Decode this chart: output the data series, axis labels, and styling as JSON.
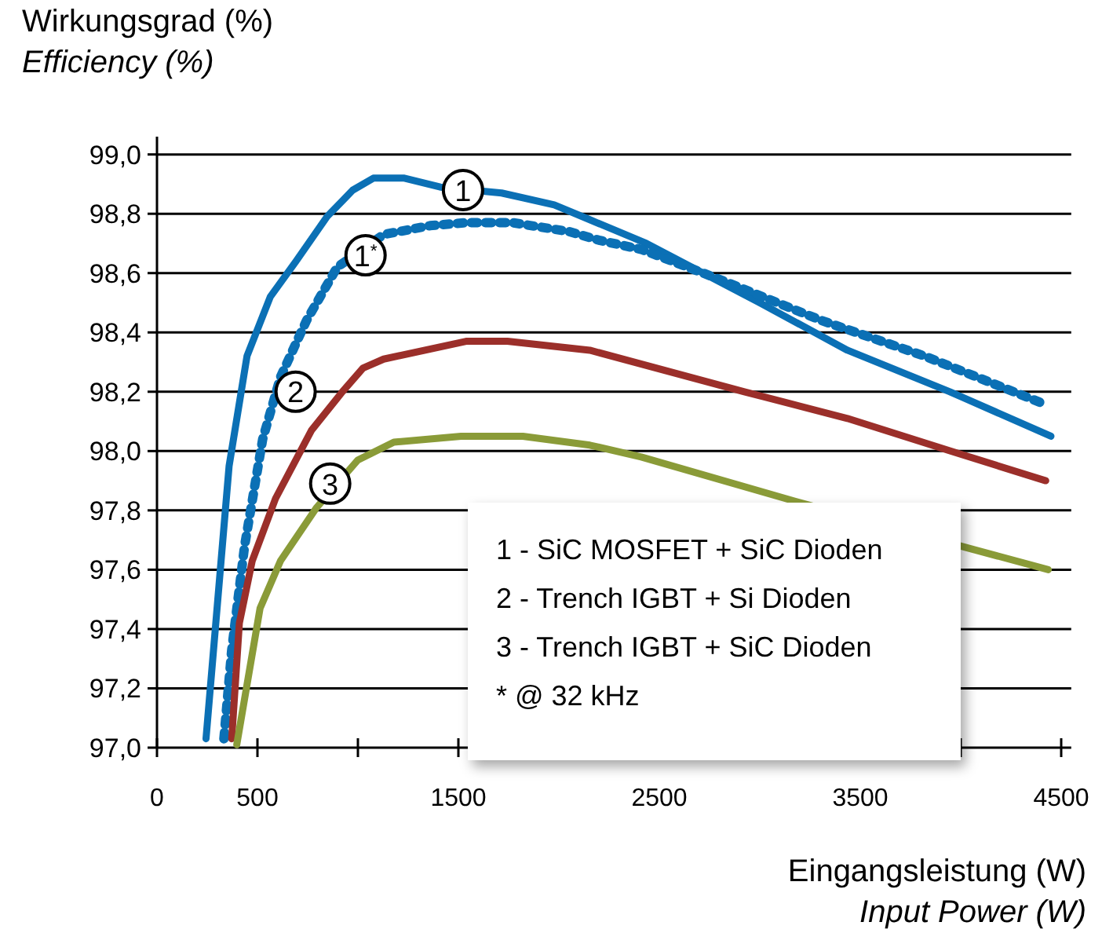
{
  "chart_data": {
    "type": "line",
    "ylabel": "Wirkungsgrad (%)\nEfficiency (%)",
    "xlabel": "Eingangsleistung (W)\nInput Power (W)",
    "xlim": [
      0,
      4550
    ],
    "xticks": [
      0,
      500,
      {
        "value": 1000,
        "label": null
      },
      1500,
      {
        "value": 2000,
        "label": null
      },
      2500,
      {
        "value": 3000,
        "label": null
      },
      3500,
      {
        "value": 4000,
        "label": null
      },
      4500
    ],
    "ylim": [
      97,
      99.06
    ],
    "yticks": [
      {
        "value": 97,
        "label": "97,0"
      },
      {
        "value": 97.2,
        "label": "97,2"
      },
      {
        "value": 97.4,
        "label": "97,4"
      },
      {
        "value": 97.6,
        "label": "97,6"
      },
      {
        "value": 97.8,
        "label": "97,8"
      },
      {
        "value": 98,
        "label": "98,0"
      },
      {
        "value": 98.2,
        "label": "98,2"
      },
      {
        "value": 98.4,
        "label": "98,4"
      },
      {
        "value": 98.6,
        "label": "98,6"
      },
      {
        "value": 98.8,
        "label": "98,8"
      },
      {
        "value": 99,
        "label": "99,0"
      }
    ],
    "grid": "y",
    "marker": "none",
    "series": [
      {
        "color": "#0b70b5",
        "line_style": "solid",
        "x": [
          244,
          359,
          448,
          564,
          692,
          846,
          975,
          1077,
          1231,
          1410,
          1715,
          1977,
          2154,
          2436,
          3000,
          3436,
          3946,
          4449
        ],
        "values": [
          97.03,
          97.95,
          98.32,
          98.52,
          98.64,
          98.79,
          98.88,
          98.92,
          98.92,
          98.89,
          98.87,
          98.83,
          98.78,
          98.7,
          98.5,
          98.34,
          98.2,
          98.05
        ]
      },
      {
        "color": "#0b70b5",
        "line_style": "dotted",
        "x": [
          333,
          372,
          436,
          526,
          615,
          744,
          897,
          1128,
          1359,
          1538,
          1769,
          2051,
          2205,
          2410,
          2795,
          3308,
          3821,
          4410
        ],
        "values": [
          97.03,
          97.33,
          97.68,
          98.04,
          98.25,
          98.44,
          98.62,
          98.73,
          98.76,
          98.77,
          98.77,
          98.74,
          98.71,
          98.68,
          98.58,
          98.44,
          98.32,
          98.16
        ]
      },
      {
        "color": "#9b2f2a",
        "line_style": "solid",
        "x": [
          372,
          410,
          474,
          590,
          769,
          923,
          1026,
          1128,
          1538,
          1744,
          2154,
          2923,
          3436,
          3949,
          4423
        ],
        "values": [
          97.03,
          97.42,
          97.63,
          97.84,
          98.07,
          98.2,
          98.28,
          98.31,
          98.37,
          98.37,
          98.34,
          98.2,
          98.11,
          98.0,
          97.9
        ]
      },
      {
        "color": "#8a9b38",
        "line_style": "solid",
        "x": [
          397,
          513,
          615,
          795,
          1000,
          1179,
          1513,
          1821,
          2154,
          2410,
          3179,
          4436
        ],
        "values": [
          97.01,
          97.47,
          97.63,
          97.81,
          97.97,
          98.03,
          98.05,
          98.05,
          98.02,
          97.98,
          97.83,
          97.6
        ]
      }
    ],
    "annotations": [
      {
        "text": "1",
        "x": 1523,
        "y": 98.88
      },
      {
        "text": "1$^{*}$",
        "x": 1038,
        "y": 98.66
      },
      {
        "text": "2",
        "x": 690,
        "y": 98.2
      },
      {
        "text": "3",
        "x": 862,
        "y": 97.89
      },
      "1 - SiC MOSFET + SiC Dioden",
      "2 - Trench IGBT + Si Dioden",
      "3 - Trench IGBT + SiC Dioden",
      "* @ 32 kHz"
    ]
  }
}
